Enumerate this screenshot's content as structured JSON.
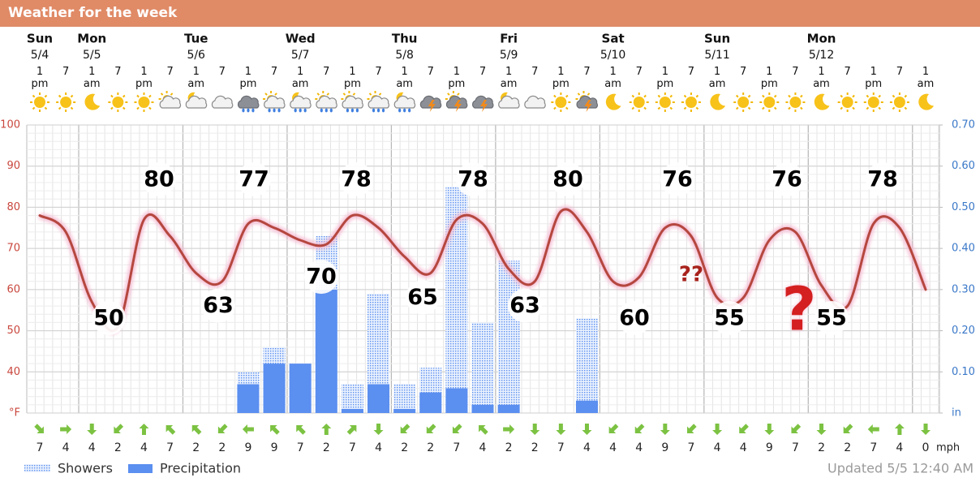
{
  "chart_data": {
    "type": "line",
    "title": "Weather for the week",
    "days": [
      {
        "name": "Sun",
        "date": "5/4"
      },
      {
        "name": "Mon",
        "date": "5/5"
      },
      {
        "name": "Tue",
        "date": "5/6"
      },
      {
        "name": "Wed",
        "date": "5/7"
      },
      {
        "name": "Thu",
        "date": "5/8"
      },
      {
        "name": "Fri",
        "date": "5/9"
      },
      {
        "name": "Sat",
        "date": "5/10"
      },
      {
        "name": "Sun",
        "date": "5/11"
      },
      {
        "name": "Mon",
        "date": "5/12"
      }
    ],
    "categories": [
      "1 pm",
      "7",
      "1 am",
      "7",
      "1 pm",
      "7",
      "1 am",
      "7",
      "1 pm",
      "7",
      "1 am",
      "7",
      "1 pm",
      "7",
      "1 am",
      "7",
      "1 pm",
      "7",
      "1 am",
      "7",
      "1 pm",
      "7",
      "1 am",
      "7",
      "1 pm",
      "7",
      "1 am",
      "7",
      "1 pm",
      "7",
      "1 am",
      "7",
      "1 pm",
      "7",
      "1 am"
    ],
    "values": [
      78,
      74,
      57,
      51,
      77,
      73,
      64,
      62,
      76,
      75,
      72,
      71,
      78,
      75,
      68,
      64,
      77,
      76,
      65,
      62,
      79,
      74,
      62,
      63,
      75,
      73,
      58,
      58,
      72,
      74,
      61,
      56,
      76,
      75,
      60
    ],
    "color": "#b5473f",
    "ylim": [
      30,
      100
    ],
    "yticks": [
      {
        "value": 30,
        "label": "°F"
      },
      40,
      50,
      60,
      70,
      80,
      90,
      100
    ],
    "y2lim": [
      0,
      0.7
    ],
    "y2ticks": [
      {
        "value": 0,
        "label": "in"
      },
      {
        "value": 0.1,
        "label": "0.10"
      },
      {
        "value": 0.2,
        "label": "0.20"
      },
      {
        "value": 0.3,
        "label": "0.30"
      },
      {
        "value": 0.4,
        "label": "0.40"
      },
      {
        "value": 0.5,
        "label": "0.50"
      },
      {
        "value": 0.6,
        "label": "0.60"
      },
      {
        "value": 0.7,
        "label": "0.70"
      }
    ],
    "grid": true,
    "series": [
      {
        "name": "Showers",
        "color": "#5b8ff0",
        "axis": "y2",
        "values": [
          0,
          0,
          0,
          0,
          0,
          0,
          0,
          0,
          0.1,
          0.16,
          0.12,
          0.43,
          0.07,
          0.29,
          0.07,
          0.11,
          0.55,
          0.22,
          0.37,
          0,
          0,
          0.23,
          0,
          0,
          0,
          0,
          0,
          0,
          0,
          0,
          0,
          0,
          0,
          0,
          0
        ]
      },
      {
        "name": "Precipitation",
        "color": "#5b8ff0",
        "axis": "y2",
        "values": [
          0,
          0,
          0,
          0,
          0,
          0,
          0,
          0,
          0.07,
          0.12,
          0.12,
          0.3,
          0.01,
          0.07,
          0.01,
          0.05,
          0.06,
          0.02,
          0.02,
          0,
          0,
          0.03,
          0,
          0,
          0,
          0,
          0,
          0,
          0,
          0,
          0,
          0,
          0,
          0,
          0
        ]
      }
    ],
    "highs": [
      80,
      77,
      78,
      78,
      80,
      76,
      76,
      78
    ],
    "lows": [
      50,
      63,
      70,
      65,
      63,
      60,
      55,
      55
    ],
    "wind_speeds": [
      7,
      4,
      4,
      2,
      4,
      7,
      2,
      2,
      9,
      9,
      7,
      2,
      7,
      4,
      2,
      2,
      7,
      4,
      2,
      2,
      7,
      4,
      4,
      4,
      9,
      7,
      4,
      4,
      9,
      7,
      2,
      2,
      7,
      4,
      0
    ],
    "wind_unit": "mph",
    "annotations": [
      "??",
      "?"
    ],
    "updated": "Updated 5/5 12:40 AM"
  }
}
